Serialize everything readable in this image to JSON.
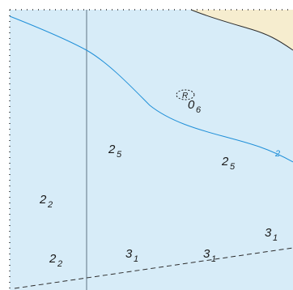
{
  "colors": {
    "water": "#d7ecf8",
    "land": "#f6edcf",
    "coastline": "#2d2d2d",
    "contour": "#1f8fd8",
    "grid": "#5f7383",
    "border_dots": "#2d2d2d",
    "text": "#1a1a1a"
  },
  "map": {
    "contour_label": "2",
    "rock_symbol_label": "R",
    "soundings": [
      {
        "id": "s1",
        "main": "0",
        "sub": "6"
      },
      {
        "id": "s2",
        "main": "2",
        "sub": "5"
      },
      {
        "id": "s3",
        "main": "2",
        "sub": "5"
      },
      {
        "id": "s4",
        "main": "2",
        "sub": "2"
      },
      {
        "id": "s5",
        "main": "3",
        "sub": "1"
      },
      {
        "id": "s6",
        "main": "2",
        "sub": "2"
      },
      {
        "id": "s7",
        "main": "3",
        "sub": "1"
      },
      {
        "id": "s8",
        "main": "3",
        "sub": "1"
      }
    ]
  }
}
